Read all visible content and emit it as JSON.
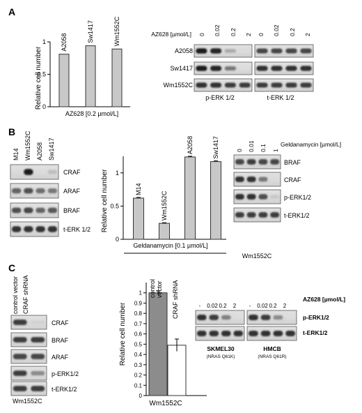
{
  "panels": {
    "A": {
      "letter": "A",
      "bar": {
        "type": "bar",
        "ylabel": "Relative cell number",
        "xlabel": "AZ628 [0.2 µmol/L]",
        "yticks": [
          "0",
          "0.5",
          "1"
        ],
        "ylim": [
          0,
          1
        ],
        "categories": [
          "A2058",
          "Sw1417",
          "Wm1552C"
        ],
        "values": [
          0.81,
          0.94,
          0.89
        ],
        "bar_color": "#c8c8c8"
      },
      "blot": {
        "treatment_label": "AZ628 [µmol/L]",
        "doses": [
          "0",
          "0.02",
          "0.2",
          "2"
        ],
        "rows": [
          "A2058",
          "Sw1417",
          "Wm1552C"
        ],
        "panels": [
          "p-ERK 1/2",
          "t-ERK 1/2"
        ]
      }
    },
    "B": {
      "letter": "B",
      "blot_left": {
        "lanes": [
          "M14",
          "Wm1552C",
          "A2058",
          "Sw1417"
        ],
        "rows": [
          "CRAF",
          "ARAF",
          "BRAF",
          "t-ERK 1/2"
        ]
      },
      "bar": {
        "type": "bar",
        "ylabel": "Relative cell number",
        "xlabel": "Geldanamycin [0.1 µmol/L]",
        "yticks": [
          "0",
          "0.5",
          "1"
        ],
        "ylim": [
          0,
          1.25
        ],
        "categories": [
          "M14",
          "Wm1552C",
          "A2058",
          "Sw1417"
        ],
        "values": [
          0.62,
          0.24,
          1.24,
          1.17
        ],
        "bar_color": "#c8c8c8"
      },
      "blot_right": {
        "treatment_label": "Geldanamycin [µmol/L]",
        "doses": [
          "0",
          "0.01",
          "0.1",
          "1"
        ],
        "rows": [
          "BRAF",
          "CRAF",
          "p-ERK1/2",
          "t-ERK1/2"
        ],
        "cell_line": "Wm1552C"
      }
    },
    "C": {
      "letter": "C",
      "blot_left": {
        "lanes": [
          "control vector",
          "CRAF shRNA"
        ],
        "rows": [
          "CRAF",
          "BRAF",
          "ARAF",
          "p-ERK1/2",
          "t-ERK1/2"
        ],
        "cell_line": "Wm1552C"
      },
      "bar": {
        "type": "bar",
        "ylabel": "Relative cell number",
        "xlabel": "Wm1552C",
        "yticks": [
          "0",
          "0.1",
          "0.2",
          "0.3",
          "0.4",
          "0.5",
          "0.6",
          "0.7",
          "0.8",
          "0.9",
          "1"
        ],
        "ylim": [
          0,
          1.1
        ],
        "categories": [
          "control vector",
          "CRAF shRNA"
        ],
        "values": [
          1.0,
          0.49
        ],
        "errors": [
          0.02,
          0.06
        ],
        "colors": [
          "#8c8c8c",
          "#ffffff"
        ]
      },
      "blot_right": {
        "treatment_label": "AZ628 [µmol/L]",
        "doses": [
          "-",
          "0.02",
          "0.2",
          "2"
        ],
        "rows": [
          "p-ERK1/2",
          "t-ERK1/2"
        ],
        "lines": [
          {
            "name": "SKMEL30",
            "mutation": "(NRAS Q61K)"
          },
          {
            "name": "HMCB",
            "mutation": "(NRAS Q61R)"
          }
        ]
      }
    }
  }
}
